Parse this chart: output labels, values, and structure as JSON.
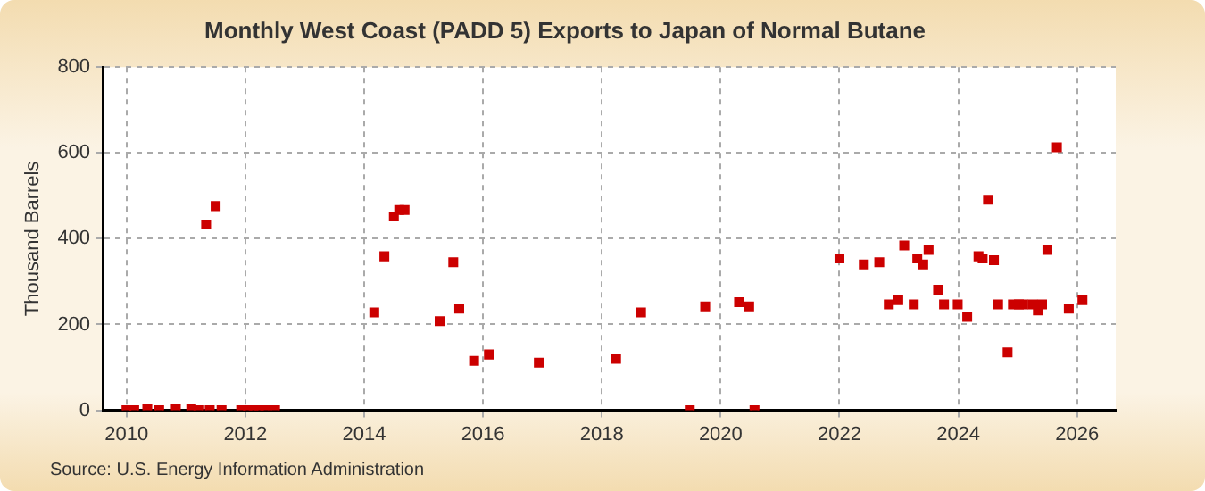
{
  "chart_data": {
    "type": "scatter",
    "title": "Monthly West Coast (PADD 5) Exports to Japan of Normal Butane",
    "ylabel": "Thousand Barrels",
    "annotations": [
      "Source: U.S. Energy Information Administration"
    ],
    "x": [
      2010.0,
      2010.13,
      2010.35,
      2010.55,
      2010.83,
      2011.09,
      2011.21,
      2011.34,
      2011.4,
      2011.5,
      2011.6,
      2011.93,
      2012.04,
      2012.14,
      2012.23,
      2012.33,
      2012.5,
      2014.17,
      2014.34,
      2014.5,
      2014.59,
      2014.68,
      2015.27,
      2015.5,
      2015.6,
      2015.85,
      2016.1,
      2016.94,
      2018.24,
      2018.66,
      2019.48,
      2019.74,
      2020.31,
      2020.48,
      2020.57,
      2022.0,
      2022.41,
      2022.67,
      2022.83,
      2022.99,
      2023.09,
      2023.25,
      2023.31,
      2023.41,
      2023.5,
      2023.66,
      2023.76,
      2023.99,
      2024.15,
      2024.34,
      2024.41,
      2024.5,
      2024.6,
      2024.67,
      2024.83,
      2024.92,
      2025.02,
      2025.09,
      2025.25,
      2025.34,
      2025.41,
      2025.5,
      2025.66,
      2025.86,
      2026.09
    ],
    "values": [
      0,
      0,
      3,
      0,
      3,
      3,
      0,
      433,
      0,
      476,
      0,
      0,
      0,
      0,
      0,
      0,
      0,
      228,
      359,
      452,
      467,
      467,
      208,
      345,
      237,
      115,
      130,
      111,
      120,
      228,
      0,
      242,
      252,
      242,
      0,
      354,
      340,
      345,
      247,
      257,
      384,
      247,
      354,
      340,
      374,
      281,
      247,
      247,
      218,
      359,
      354,
      491,
      350,
      247,
      135,
      247,
      247,
      247,
      247,
      233,
      247,
      374,
      613,
      237,
      257
    ],
    "color": "#cc0000",
    "marker": "square",
    "grid": true,
    "xlim": [
      2009.6,
      2026.65
    ],
    "xticks": [
      2010,
      2012,
      2014,
      2016,
      2018,
      2020,
      2022,
      2024,
      2026
    ],
    "ylim": [
      0,
      800
    ],
    "yticks": [
      0,
      200,
      400,
      600,
      800
    ]
  }
}
